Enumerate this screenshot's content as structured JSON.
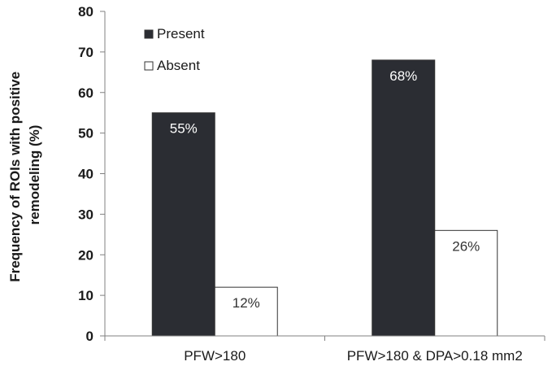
{
  "chart_data": {
    "type": "bar",
    "title": "",
    "xlabel": "",
    "ylabel_lines": [
      "Frequency of ROIs with positive",
      "remodeling (%)"
    ],
    "categories": [
      "PFW>180",
      "PFW>180 & DPA>0.18 mm2"
    ],
    "series": [
      {
        "name": "Present",
        "values": [
          55,
          68
        ],
        "labels": [
          "55%",
          "68%"
        ],
        "color": "#2b2d33",
        "label_color": "#ffffff"
      },
      {
        "name": "Absent",
        "values": [
          12,
          26
        ],
        "labels": [
          "12%",
          "26%"
        ],
        "color": "#ffffff",
        "label_color": "#333333"
      }
    ],
    "ylim": [
      0,
      80
    ],
    "yticks": [
      0,
      10,
      20,
      30,
      40,
      50,
      60,
      70,
      80
    ],
    "legend_position": "top-left",
    "grid": false
  }
}
